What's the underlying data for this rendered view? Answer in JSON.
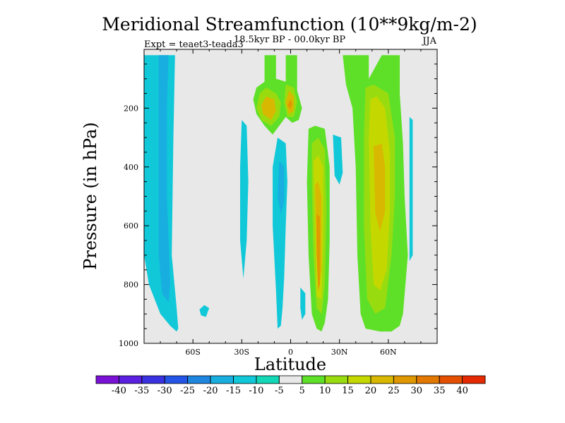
{
  "chart_data": {
    "type": "contour",
    "title": "Meridional Streamfunction (10**9kg/m-2)",
    "subtitle": "18.5kyr BP - 00.0kyr BP",
    "left_note": "Expt = teaet3-teada3",
    "right_note": "JJA",
    "xlabel": "Latitude",
    "ylabel": "Pressure (in hPa)",
    "xlim": [
      -90,
      90
    ],
    "ylim": [
      1000,
      0
    ],
    "x_ticks": [
      {
        "value": -60,
        "label": "60S"
      },
      {
        "value": -30,
        "label": "30S"
      },
      {
        "value": 0,
        "label": "0"
      },
      {
        "value": 30,
        "label": "30N"
      },
      {
        "value": 60,
        "label": "60N"
      }
    ],
    "y_ticks": [
      {
        "value": 200,
        "label": "200"
      },
      {
        "value": 400,
        "label": "400"
      },
      {
        "value": 600,
        "label": "600"
      },
      {
        "value": 800,
        "label": "800"
      },
      {
        "value": 1000,
        "label": "1000"
      }
    ],
    "colorbar": {
      "labels": [
        "-40",
        "-35",
        "-30",
        "-25",
        "-20",
        "-15",
        "-10",
        "-5",
        "5",
        "10",
        "15",
        "20",
        "25",
        "30",
        "35",
        "40"
      ],
      "colors": [
        "#7a12d6",
        "#5a1fe0",
        "#3a32e0",
        "#2455e6",
        "#1f86e0",
        "#18aee0",
        "#10c8d8",
        "#12d8b8",
        "#e8e8e8",
        "#5ee028",
        "#98dc10",
        "#c4d800",
        "#d8b800",
        "#e09800",
        "#e27800",
        "#e45000",
        "#e62a00"
      ]
    },
    "regions": [
      {
        "name": "sh-polar-cell",
        "fill": "#10c8d8",
        "pts": [
          [
            -90,
            20
          ],
          [
            -71,
            20
          ],
          [
            -72,
            300
          ],
          [
            -73,
            700
          ],
          [
            -70,
            880
          ],
          [
            -69,
            950
          ],
          [
            -70,
            960
          ],
          [
            -74,
            940
          ],
          [
            -80,
            900
          ],
          [
            -87,
            800
          ],
          [
            -90,
            700
          ]
        ]
      },
      {
        "name": "sh-polar-core",
        "fill": "#18aee0",
        "pts": [
          [
            -81,
            20
          ],
          [
            -75,
            20
          ],
          [
            -76,
            200
          ],
          [
            -76,
            500
          ],
          [
            -74,
            800
          ],
          [
            -75,
            860
          ],
          [
            -79,
            830
          ],
          [
            -81,
            700
          ],
          [
            -81,
            400
          ]
        ]
      },
      {
        "name": "sh-small-blob",
        "fill": "#10c8d8",
        "pts": [
          [
            -53,
            870
          ],
          [
            -50,
            880
          ],
          [
            -52,
            910
          ],
          [
            -55,
            905
          ],
          [
            -56,
            885
          ]
        ]
      },
      {
        "name": "sh-left-strip",
        "fill": "#10c8d8",
        "pts": [
          [
            -30,
            240
          ],
          [
            -27,
            260
          ],
          [
            -26,
            450
          ],
          [
            -27,
            650
          ],
          [
            -29,
            780
          ],
          [
            -31,
            650
          ],
          [
            -31,
            400
          ]
        ]
      },
      {
        "name": "sh-mid-cell",
        "fill": "#10c8d8",
        "pts": [
          [
            -8,
            300
          ],
          [
            -3,
            320
          ],
          [
            -2,
            450
          ],
          [
            -3,
            600
          ],
          [
            -4,
            780
          ],
          [
            -5,
            880
          ],
          [
            -6,
            940
          ],
          [
            -8,
            950
          ],
          [
            -9,
            820
          ],
          [
            -11,
            600
          ],
          [
            -11,
            400
          ]
        ]
      },
      {
        "name": "sh-mid-core",
        "fill": "#18aee0",
        "pts": [
          [
            -7,
            380
          ],
          [
            -4,
            400
          ],
          [
            -4,
            520
          ],
          [
            -6,
            560
          ],
          [
            -8,
            500
          ]
        ]
      },
      {
        "name": "tropic-strip",
        "fill": "#10c8d8",
        "pts": [
          [
            6,
            810
          ],
          [
            9,
            830
          ],
          [
            9,
            900
          ],
          [
            7,
            920
          ],
          [
            6,
            880
          ]
        ]
      },
      {
        "name": "upper-cell-green",
        "fill": "#5ee028",
        "pts": [
          [
            -16,
            20
          ],
          [
            -9,
            20
          ],
          [
            -9,
            100
          ],
          [
            -3,
            110
          ],
          [
            -3,
            20
          ],
          [
            4,
            20
          ],
          [
            4,
            140
          ],
          [
            7,
            200
          ],
          [
            5,
            240
          ],
          [
            1,
            250
          ],
          [
            -3,
            230
          ],
          [
            -7,
            260
          ],
          [
            -11,
            290
          ],
          [
            -16,
            260
          ],
          [
            -21,
            220
          ],
          [
            -23,
            170
          ],
          [
            -21,
            130
          ],
          [
            -16,
            110
          ]
        ]
      },
      {
        "name": "upper-cell-a",
        "fill": "#98dc10",
        "pts": [
          [
            -15,
            130
          ],
          [
            -9,
            150
          ],
          [
            -6,
            180
          ],
          [
            -7,
            230
          ],
          [
            -12,
            260
          ],
          [
            -18,
            240
          ],
          [
            -21,
            200
          ],
          [
            -19,
            150
          ]
        ]
      },
      {
        "name": "upper-cell-b",
        "fill": "#98dc10",
        "pts": [
          [
            -3,
            120
          ],
          [
            2,
            130
          ],
          [
            4,
            180
          ],
          [
            2,
            230
          ],
          [
            -2,
            230
          ],
          [
            -4,
            180
          ]
        ]
      },
      {
        "name": "upper-cell-a-core",
        "fill": "#d8b800",
        "pts": [
          [
            -15,
            160
          ],
          [
            -10,
            170
          ],
          [
            -9,
            210
          ],
          [
            -12,
            240
          ],
          [
            -17,
            220
          ],
          [
            -18,
            190
          ]
        ]
      },
      {
        "name": "upper-cell-b-core",
        "fill": "#d8b800",
        "pts": [
          [
            -1,
            140
          ],
          [
            2,
            160
          ],
          [
            2,
            210
          ],
          [
            -1,
            220
          ],
          [
            -3,
            180
          ]
        ]
      },
      {
        "name": "upper-cell-b-peak",
        "fill": "#e09800",
        "pts": [
          [
            0,
            170
          ],
          [
            1,
            185
          ],
          [
            0,
            205
          ],
          [
            -2,
            190
          ]
        ]
      },
      {
        "name": "nh-tropic-cell",
        "fill": "#5ee028",
        "pts": [
          [
            11,
            270
          ],
          [
            15,
            260
          ],
          [
            21,
            270
          ],
          [
            24,
            400
          ],
          [
            24,
            650
          ],
          [
            23,
            850
          ],
          [
            21,
            930
          ],
          [
            19,
            960
          ],
          [
            16,
            950
          ],
          [
            13,
            900
          ],
          [
            11,
            700
          ],
          [
            10,
            450
          ]
        ]
      },
      {
        "name": "nh-tropic-l2",
        "fill": "#98dc10",
        "pts": [
          [
            13,
            320
          ],
          [
            17,
            300
          ],
          [
            21,
            340
          ],
          [
            22,
            550
          ],
          [
            21,
            800
          ],
          [
            19,
            900
          ],
          [
            16,
            880
          ],
          [
            14,
            700
          ],
          [
            13,
            450
          ]
        ]
      },
      {
        "name": "nh-tropic-l3",
        "fill": "#c4d800",
        "pts": [
          [
            14,
            380
          ],
          [
            17,
            360
          ],
          [
            20,
            400
          ],
          [
            20,
            650
          ],
          [
            19,
            850
          ],
          [
            16,
            840
          ],
          [
            15,
            600
          ]
        ]
      },
      {
        "name": "nh-tropic-l4",
        "fill": "#d8b800",
        "pts": [
          [
            15,
            460
          ],
          [
            17,
            450
          ],
          [
            19,
            500
          ],
          [
            19,
            750
          ],
          [
            17,
            830
          ],
          [
            16,
            700
          ]
        ]
      },
      {
        "name": "nh-tropic-peak",
        "fill": "#e09800",
        "pts": [
          [
            16,
            560
          ],
          [
            18,
            570
          ],
          [
            18,
            800
          ],
          [
            17,
            820
          ],
          [
            16,
            700
          ]
        ]
      },
      {
        "name": "nh-blob",
        "fill": "#10c8d8",
        "pts": [
          [
            26,
            290
          ],
          [
            31,
            300
          ],
          [
            32,
            420
          ],
          [
            30,
            460
          ],
          [
            27,
            430
          ]
        ]
      },
      {
        "name": "nh-mid-cell",
        "fill": "#5ee028",
        "pts": [
          [
            32,
            20
          ],
          [
            48,
            20
          ],
          [
            48,
            100
          ],
          [
            56,
            20
          ],
          [
            67,
            20
          ],
          [
            67,
            150
          ],
          [
            69,
            320
          ],
          [
            70,
            500
          ],
          [
            72,
            700
          ],
          [
            69,
            900
          ],
          [
            67,
            940
          ],
          [
            62,
            960
          ],
          [
            55,
            960
          ],
          [
            46,
            950
          ],
          [
            43,
            900
          ],
          [
            41,
            700
          ],
          [
            40,
            400
          ],
          [
            38,
            200
          ],
          [
            34,
            120
          ]
        ]
      },
      {
        "name": "nh-mid-l2",
        "fill": "#98dc10",
        "pts": [
          [
            46,
            130
          ],
          [
            51,
            120
          ],
          [
            60,
            150
          ],
          [
            64,
            300
          ],
          [
            64,
            500
          ],
          [
            62,
            700
          ],
          [
            58,
            880
          ],
          [
            52,
            900
          ],
          [
            47,
            850
          ],
          [
            45,
            600
          ],
          [
            45,
            300
          ]
        ]
      },
      {
        "name": "nh-mid-l3",
        "fill": "#c4d800",
        "pts": [
          [
            49,
            170
          ],
          [
            53,
            160
          ],
          [
            58,
            200
          ],
          [
            61,
            350
          ],
          [
            61,
            550
          ],
          [
            59,
            750
          ],
          [
            55,
            820
          ],
          [
            51,
            800
          ],
          [
            49,
            600
          ],
          [
            48,
            300
          ]
        ]
      },
      {
        "name": "nh-mid-l4",
        "fill": "#d8b800",
        "pts": [
          [
            51,
            330
          ],
          [
            56,
            320
          ],
          [
            58,
            400
          ],
          [
            58,
            550
          ],
          [
            55,
            620
          ],
          [
            52,
            560
          ]
        ]
      },
      {
        "name": "nh-far-strip",
        "fill": "#10c8d8",
        "pts": [
          [
            73,
            230
          ],
          [
            75,
            240
          ],
          [
            75,
            700
          ],
          [
            73,
            720
          ],
          [
            73,
            400
          ]
        ]
      }
    ]
  }
}
